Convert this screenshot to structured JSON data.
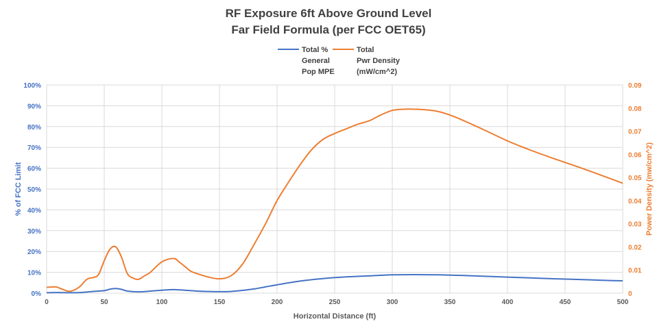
{
  "chart_data": {
    "type": "line",
    "title": "RF Exposure 6ft Above Ground Level",
    "subtitle": "Far Field Formula (per FCC OET65)",
    "xlabel": "Horizontal Distance (ft)",
    "ylabel_left": "% of FCC Limit",
    "ylabel_right": "Power Density (mw/cm^2)",
    "xlim": [
      0,
      500
    ],
    "ylim_left": [
      0,
      1
    ],
    "ylim_right": [
      0,
      0.09
    ],
    "x_ticks": [
      "0",
      "50",
      "100",
      "150",
      "200",
      "250",
      "300",
      "350",
      "400",
      "450",
      "500"
    ],
    "y_left_ticks": [
      "0%",
      "10%",
      "20%",
      "30%",
      "40%",
      "50%",
      "60%",
      "70%",
      "80%",
      "90%",
      "100%"
    ],
    "y_right_ticks": [
      "0",
      "0.01",
      "0.02",
      "0.03",
      "0.04",
      "0.05",
      "0.06",
      "0.07",
      "0.08",
      "0.09"
    ],
    "grid": true,
    "legend_position": "top-center",
    "legend": [
      {
        "label": [
          "Total %",
          "General",
          "Pop MPE"
        ],
        "color": "#4472c4"
      },
      {
        "label": [
          "Total",
          "Pwr Density",
          "(mW/cm^2)"
        ],
        "color": "#ed7d31"
      }
    ],
    "left_axis_color": "#4472c4",
    "right_axis_color": "#ed7d31",
    "series": [
      {
        "name": "Total % General Pop MPE",
        "axis": "left",
        "color": "#4472c4",
        "x": [
          0,
          10,
          20,
          30,
          40,
          50,
          55,
          60,
          65,
          70,
          80,
          90,
          100,
          110,
          120,
          130,
          140,
          150,
          160,
          170,
          180,
          190,
          200,
          220,
          240,
          260,
          280,
          300,
          320,
          340,
          360,
          380,
          400,
          420,
          440,
          460,
          480,
          500
        ],
        "y": [
          0.002,
          0.003,
          0.002,
          0.003,
          0.008,
          0.012,
          0.019,
          0.022,
          0.018,
          0.01,
          0.006,
          0.01,
          0.014,
          0.017,
          0.014,
          0.01,
          0.008,
          0.007,
          0.008,
          0.013,
          0.02,
          0.03,
          0.04,
          0.058,
          0.07,
          0.078,
          0.083,
          0.088,
          0.089,
          0.088,
          0.085,
          0.081,
          0.077,
          0.073,
          0.069,
          0.066,
          0.062,
          0.059
        ]
      },
      {
        "name": "Total Pwr Density (mW/cm^2)",
        "axis": "right",
        "color": "#ed7d31",
        "x": [
          0,
          8,
          12,
          20,
          28,
          35,
          40,
          45,
          50,
          55,
          60,
          65,
          70,
          75,
          80,
          85,
          90,
          100,
          110,
          115,
          120,
          125,
          130,
          140,
          150,
          160,
          170,
          180,
          190,
          200,
          210,
          220,
          230,
          240,
          250,
          260,
          270,
          280,
          290,
          300,
          310,
          320,
          330,
          340,
          350,
          360,
          380,
          400,
          420,
          440,
          460,
          480,
          500
        ],
        "y": [
          0.0025,
          0.0027,
          0.002,
          0.0008,
          0.0025,
          0.006,
          0.0067,
          0.008,
          0.014,
          0.019,
          0.02,
          0.0155,
          0.0085,
          0.0065,
          0.006,
          0.0075,
          0.009,
          0.0135,
          0.015,
          0.0135,
          0.0115,
          0.0095,
          0.0085,
          0.007,
          0.0062,
          0.0075,
          0.0125,
          0.021,
          0.03,
          0.04,
          0.048,
          0.0555,
          0.062,
          0.0665,
          0.069,
          0.071,
          0.073,
          0.0745,
          0.077,
          0.079,
          0.0795,
          0.0795,
          0.0792,
          0.0785,
          0.077,
          0.075,
          0.0705,
          0.0658,
          0.0618,
          0.0582,
          0.0548,
          0.0512,
          0.0475
        ]
      }
    ]
  }
}
